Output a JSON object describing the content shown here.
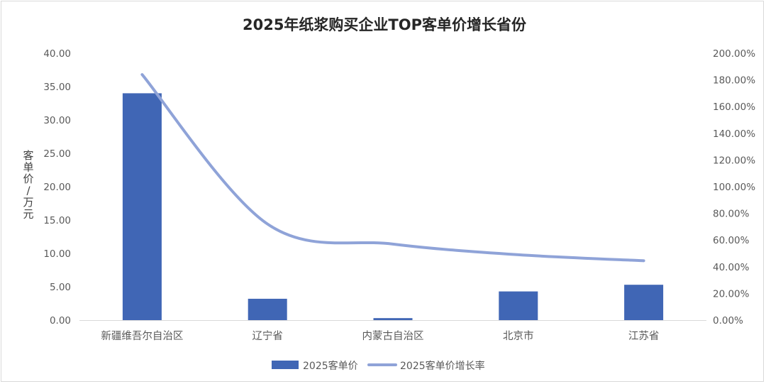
{
  "chart_data": {
    "type": "bar",
    "title": "2025年纸浆购买企业TOP客单价增长省份",
    "categories": [
      "新疆维吾尔自治区",
      "辽宁省",
      "内蒙古自治区",
      "北京市",
      "江苏省"
    ],
    "series": [
      {
        "name": "2025客单价",
        "kind": "bar",
        "axis": "left",
        "values": [
          34.0,
          3.2,
          0.3,
          4.3,
          5.3
        ],
        "color": "#4066b5"
      },
      {
        "name": "2025客单价增长率",
        "kind": "line",
        "axis": "right",
        "values": [
          1.84,
          0.72,
          0.57,
          0.49,
          0.445
        ],
        "color": "#8fa3d8"
      }
    ],
    "ylabel": "客单价/万元",
    "y_left": {
      "lim": [
        0,
        40
      ],
      "ticks": [
        "0.00",
        "5.00",
        "10.00",
        "15.00",
        "20.00",
        "25.00",
        "30.00",
        "35.00",
        "40.00"
      ]
    },
    "y_right": {
      "lim": [
        0,
        2.0
      ],
      "ticks": [
        "0.00%",
        "20.00%",
        "40.00%",
        "60.00%",
        "80.00%",
        "100.00%",
        "120.00%",
        "140.00%",
        "160.00%",
        "180.00%",
        "200.00%"
      ]
    },
    "grid": false,
    "legend_position": "bottom"
  }
}
